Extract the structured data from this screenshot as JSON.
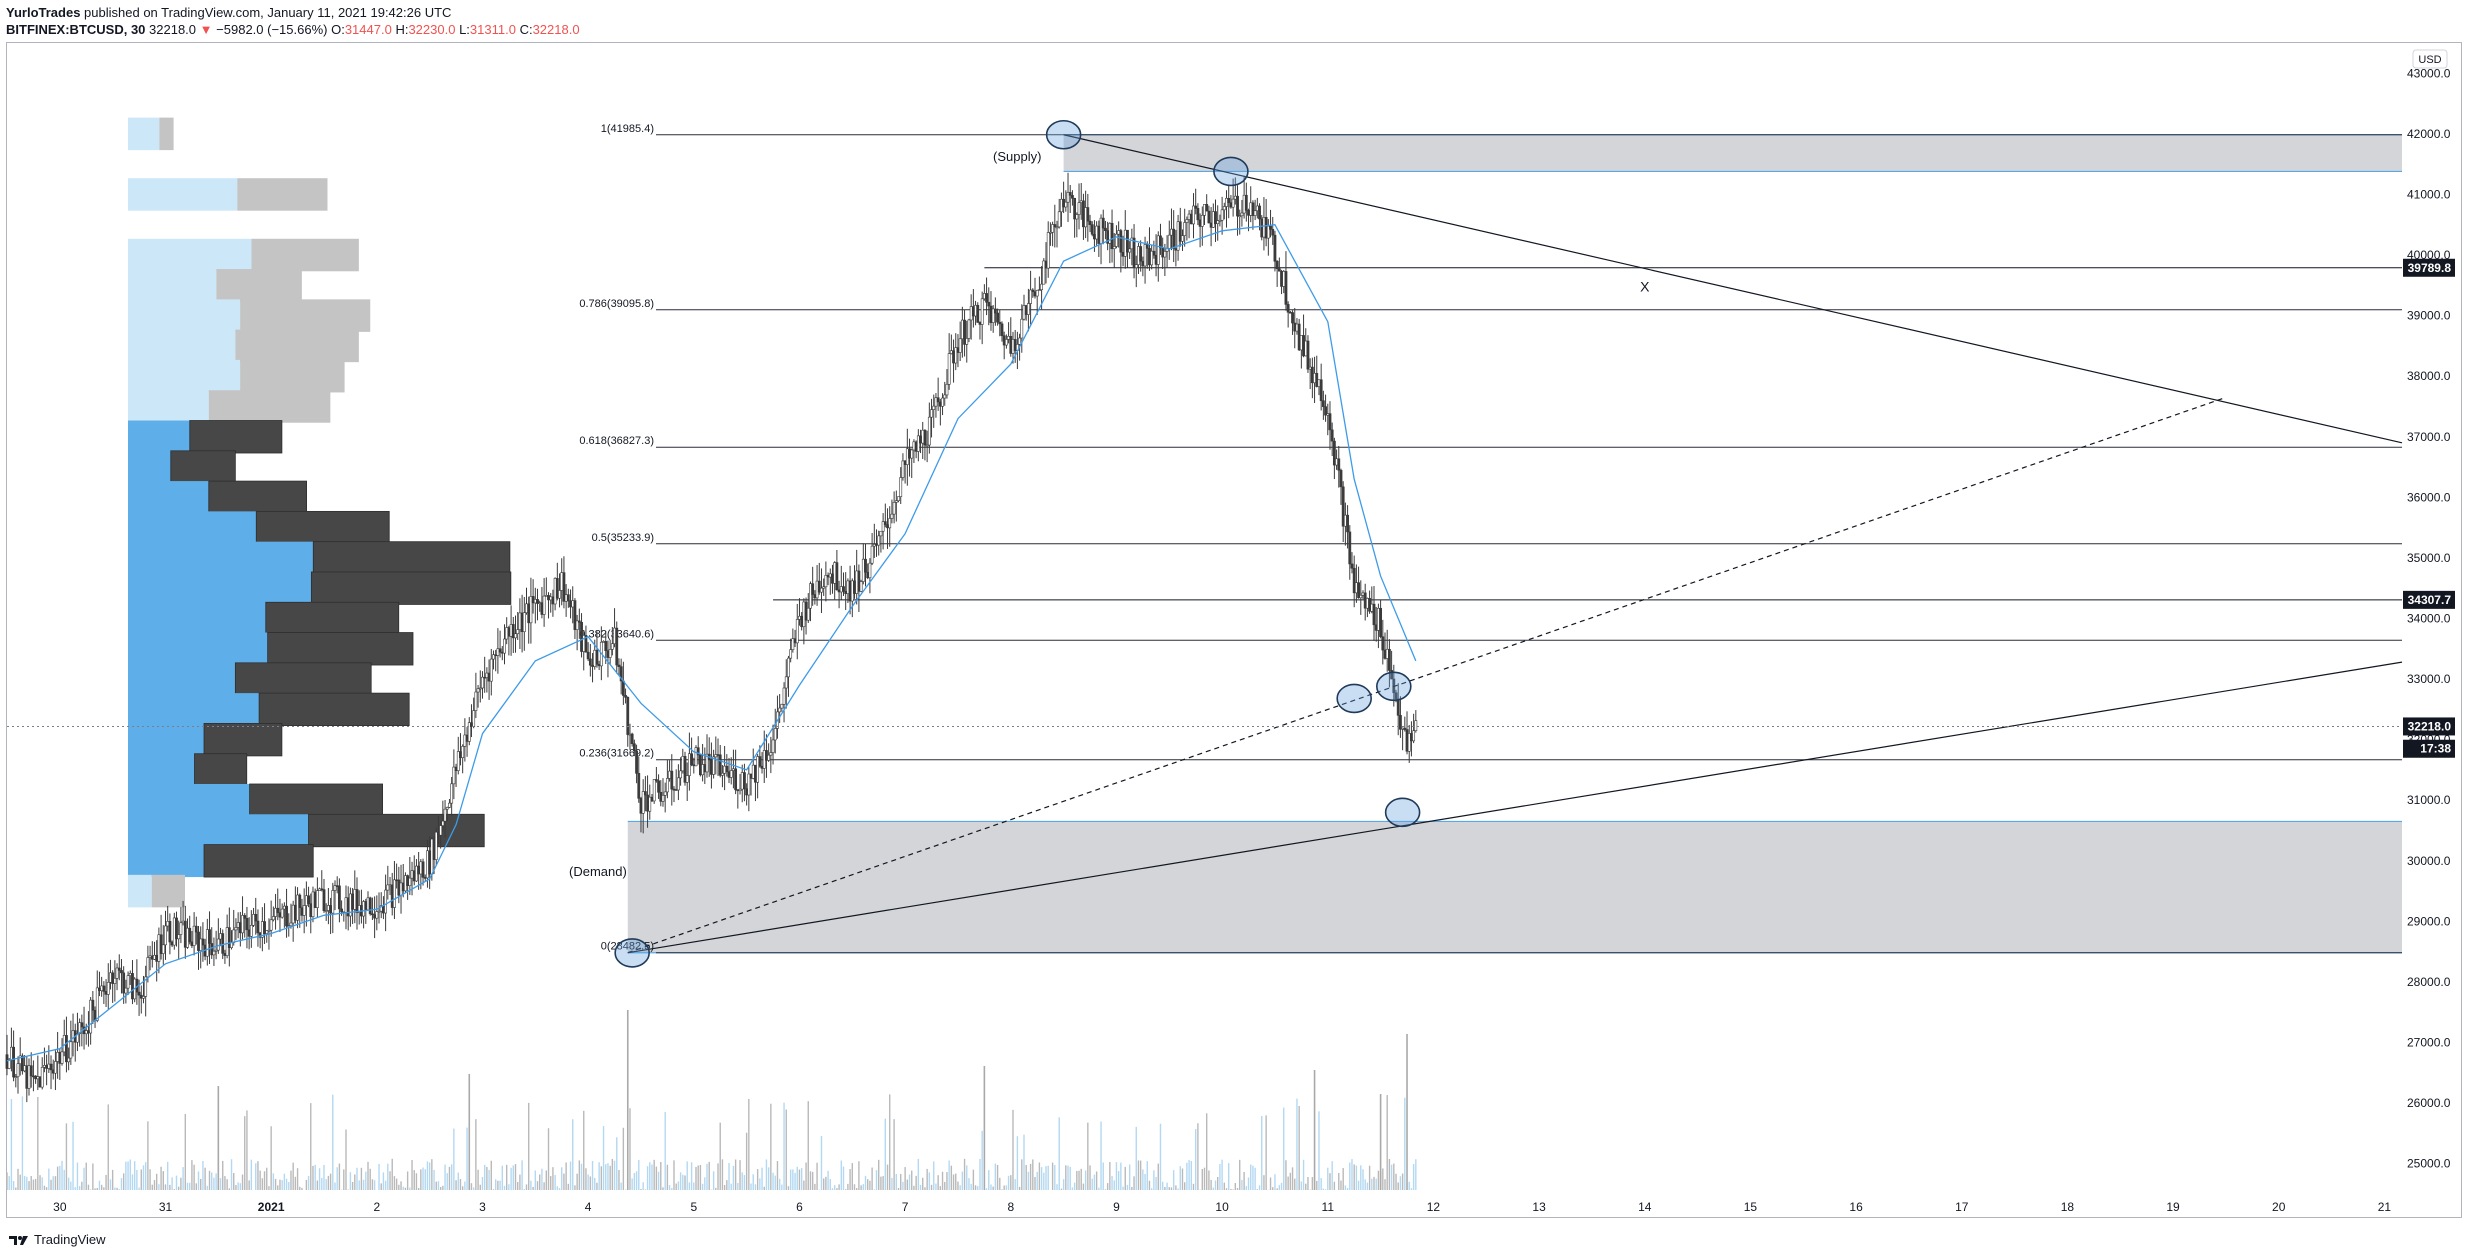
{
  "header": {
    "author": "YurloTrades",
    "published_text": "published on TradingView.com, January 11, 2021 19:42:26 UTC",
    "symbol": "BITFINEX:BTCUSD, 30",
    "last": "32218.0",
    "change": "−5982.0 (−15.66%)",
    "o_label": "O:",
    "o_value": "31447.0",
    "h_label": "H:",
    "h_value": "32230.0",
    "l_label": "L:",
    "l_value": "31311.0",
    "c_label": "C:",
    "c_value": "32218.0"
  },
  "footer": {
    "brand": "TradingView"
  },
  "chart_data": {
    "type": "candlestick",
    "currency_label": "USD",
    "ylim": [
      24500,
      43500
    ],
    "y_ticks": [
      25000,
      26000,
      27000,
      28000,
      29000,
      30000,
      31000,
      32000,
      33000,
      34000,
      35000,
      36000,
      37000,
      38000,
      39000,
      40000,
      41000,
      42000,
      43000
    ],
    "x_axis": {
      "date_range": [
        "2020-12-29 12:00",
        "2021-01-21 04:00"
      ],
      "ticks": [
        {
          "label": "30",
          "date": "2020-12-30"
        },
        {
          "label": "31",
          "date": "2020-12-31"
        },
        {
          "label": "2021",
          "date": "2021-01-01",
          "bold": true
        },
        {
          "label": "2",
          "date": "2021-01-02"
        },
        {
          "label": "3",
          "date": "2021-01-03"
        },
        {
          "label": "4",
          "date": "2021-01-04"
        },
        {
          "label": "5",
          "date": "2021-01-05"
        },
        {
          "label": "6",
          "date": "2021-01-06"
        },
        {
          "label": "7",
          "date": "2021-01-07"
        },
        {
          "label": "8",
          "date": "2021-01-08"
        },
        {
          "label": "9",
          "date": "2021-01-09"
        },
        {
          "label": "10",
          "date": "2021-01-10"
        },
        {
          "label": "11",
          "date": "2021-01-11"
        },
        {
          "label": "12",
          "date": "2021-01-12"
        },
        {
          "label": "13",
          "date": "2021-01-13"
        },
        {
          "label": "14",
          "date": "2021-01-14"
        },
        {
          "label": "15",
          "date": "2021-01-15"
        },
        {
          "label": "16",
          "date": "2021-01-16"
        },
        {
          "label": "17",
          "date": "2021-01-17"
        },
        {
          "label": "18",
          "date": "2021-01-18"
        },
        {
          "label": "19",
          "date": "2021-01-19"
        },
        {
          "label": "20",
          "date": "2021-01-20"
        },
        {
          "label": "21",
          "date": "2021-01-21"
        }
      ]
    },
    "price_path": [
      [
        "2020-12-29 12:00",
        26800
      ],
      [
        "2020-12-29 18:00",
        26300
      ],
      [
        "2020-12-30 00:00",
        26800
      ],
      [
        "2020-12-30 06:00",
        27300
      ],
      [
        "2020-12-30 12:00",
        28200
      ],
      [
        "2020-12-30 18:00",
        27800
      ],
      [
        "2020-12-31 00:00",
        28900
      ],
      [
        "2020-12-31 06:00",
        28700
      ],
      [
        "2020-12-31 12:00",
        28600
      ],
      [
        "2020-12-31 18:00",
        28900
      ],
      [
        "2021-01-01 00:00",
        29000
      ],
      [
        "2021-01-01 06:00",
        29200
      ],
      [
        "2021-01-01 12:00",
        29400
      ],
      [
        "2021-01-01 18:00",
        29300
      ],
      [
        "2021-01-02 00:00",
        29300
      ],
      [
        "2021-01-02 06:00",
        29600
      ],
      [
        "2021-01-02 12:00",
        30000
      ],
      [
        "2021-01-02 18:00",
        31500
      ],
      [
        "2021-01-03 00:00",
        33000
      ],
      [
        "2021-01-03 06:00",
        33800
      ],
      [
        "2021-01-03 12:00",
        34200
      ],
      [
        "2021-01-03 18:00",
        34600
      ],
      [
        "2021-01-04 00:00",
        33300
      ],
      [
        "2021-01-04 06:00",
        33600
      ],
      [
        "2021-01-04 12:00",
        31000
      ],
      [
        "2021-01-04 18:00",
        31200
      ],
      [
        "2021-01-05 00:00",
        31700
      ],
      [
        "2021-01-05 06:00",
        31500
      ],
      [
        "2021-01-05 12:00",
        31300
      ],
      [
        "2021-01-05 18:00",
        32000
      ],
      [
        "2021-01-06 00:00",
        34000
      ],
      [
        "2021-01-06 06:00",
        34800
      ],
      [
        "2021-01-06 12:00",
        34500
      ],
      [
        "2021-01-06 18:00",
        35200
      ],
      [
        "2021-01-07 00:00",
        36500
      ],
      [
        "2021-01-07 06:00",
        37200
      ],
      [
        "2021-01-07 12:00",
        38600
      ],
      [
        "2021-01-07 18:00",
        39200
      ],
      [
        "2021-01-08 00:00",
        38500
      ],
      [
        "2021-01-08 06:00",
        39500
      ],
      [
        "2021-01-08 12:00",
        41000
      ],
      [
        "2021-01-08 18:00",
        40500
      ],
      [
        "2021-01-09 00:00",
        40300
      ],
      [
        "2021-01-09 06:00",
        39900
      ],
      [
        "2021-01-09 12:00",
        40200
      ],
      [
        "2021-01-09 18:00",
        40600
      ],
      [
        "2021-01-10 00:00",
        40700
      ],
      [
        "2021-01-10 06:00",
        40900
      ],
      [
        "2021-01-10 12:00",
        40100
      ],
      [
        "2021-01-10 18:00",
        38500
      ],
      [
        "2021-01-11 00:00",
        37500
      ],
      [
        "2021-01-11 06:00",
        34500
      ],
      [
        "2021-01-11 12:00",
        33900
      ],
      [
        "2021-01-11 18:00",
        31800
      ],
      [
        "2021-01-11 20:00",
        32218
      ]
    ],
    "moving_average": [
      [
        "2020-12-29 12:00",
        26700
      ],
      [
        "2020-12-30 00:00",
        26900
      ],
      [
        "2020-12-30 12:00",
        27600
      ],
      [
        "2020-12-31 00:00",
        28300
      ],
      [
        "2020-12-31 12:00",
        28600
      ],
      [
        "2021-01-01 00:00",
        28800
      ],
      [
        "2021-01-01 12:00",
        29100
      ],
      [
        "2021-01-02 00:00",
        29200
      ],
      [
        "2021-01-02 12:00",
        29700
      ],
      [
        "2021-01-02 18:00",
        30600
      ],
      [
        "2021-01-03 00:00",
        32100
      ],
      [
        "2021-01-03 12:00",
        33300
      ],
      [
        "2021-01-04 00:00",
        33700
      ],
      [
        "2021-01-04 12:00",
        32600
      ],
      [
        "2021-01-05 00:00",
        31800
      ],
      [
        "2021-01-05 12:00",
        31500
      ],
      [
        "2021-01-06 00:00",
        32900
      ],
      [
        "2021-01-06 12:00",
        34200
      ],
      [
        "2021-01-07 00:00",
        35400
      ],
      [
        "2021-01-07 12:00",
        37300
      ],
      [
        "2021-01-08 00:00",
        38200
      ],
      [
        "2021-01-08 12:00",
        39900
      ],
      [
        "2021-01-09 00:00",
        40300
      ],
      [
        "2021-01-09 12:00",
        40100
      ],
      [
        "2021-01-10 00:00",
        40400
      ],
      [
        "2021-01-10 12:00",
        40500
      ],
      [
        "2021-01-11 00:00",
        38900
      ],
      [
        "2021-01-11 06:00",
        36300
      ],
      [
        "2021-01-11 12:00",
        34700
      ],
      [
        "2021-01-11 20:00",
        33300
      ]
    ],
    "volume_spikes": [
      [
        "2021-01-02 21:00",
        0.58
      ],
      [
        "2020-12-31 12:00",
        0.52
      ],
      [
        "2021-01-04 09:00",
        0.9
      ],
      [
        "2021-01-07 18:00",
        0.62
      ],
      [
        "2021-01-10 21:00",
        0.6
      ],
      [
        "2021-01-11 18:00",
        0.78
      ],
      [
        "2021-01-11 12:00",
        0.48
      ]
    ],
    "fibonacci": [
      {
        "label": "1(41985.4)",
        "price": 41985.4
      },
      {
        "label": "0.786(39095.8)",
        "price": 39095.8
      },
      {
        "label": "0.618(36827.3)",
        "price": 36827.3
      },
      {
        "label": "0.5(35233.9)",
        "price": 35233.9
      },
      {
        "label": "0.382(33640.6)",
        "price": 33640.6
      },
      {
        "label": "0.236(31669.2)",
        "price": 31669.2
      },
      {
        "label": "0(28482.5)",
        "price": 28482.5
      }
    ],
    "horizontal_levels": [
      {
        "label": "39789.8",
        "price": 39789.8,
        "start": "2021-01-07 18:00"
      },
      {
        "label": "34307.7",
        "price": 34307.7,
        "start": "2021-01-05 18:00"
      }
    ],
    "zones": [
      {
        "label": "(Supply)",
        "top": 41985.4,
        "bottom": 41380,
        "start": "2021-01-08 12:00"
      },
      {
        "label": "(Demand)",
        "top": 30650,
        "bottom": 28482.5,
        "start": "2021-01-04 09:00"
      }
    ],
    "trendlines": [
      {
        "style": "solid",
        "from": [
          "2021-01-08 12:00",
          41985.4
        ],
        "to": [
          "2021-01-21 04:00",
          36900
        ]
      },
      {
        "style": "solid",
        "from": [
          "2021-01-04 09:00",
          28482.5
        ],
        "to": [
          "2021-01-21 04:00",
          33280
        ]
      },
      {
        "style": "dashed",
        "from": [
          "2021-01-04 09:00",
          28482.5
        ],
        "to": [
          "2021-01-19 12:00",
          37650
        ]
      }
    ],
    "circles": [
      [
        "2021-01-08 12:00",
        41985.4
      ],
      [
        "2021-01-10 02:00",
        41380
      ],
      [
        "2021-01-11 06:00",
        32680
      ],
      [
        "2021-01-11 15:00",
        32880
      ],
      [
        "2021-01-11 17:00",
        30800
      ],
      [
        "2021-01-04 10:00",
        28480
      ]
    ],
    "annotation_x": {
      "label": "X",
      "date": "2021-01-14 00:00",
      "price": 39400
    },
    "price_labels": [
      {
        "label": "39789.8",
        "price": 39789.8,
        "style": "dark"
      },
      {
        "label": "34307.7",
        "price": 34307.7,
        "style": "dark"
      },
      {
        "label": "32218.0",
        "price": 32218.0,
        "style": "dark"
      },
      {
        "label": "17:38",
        "price": 31850,
        "style": "dark"
      }
    ],
    "volume_profile": [
      {
        "price": 42000,
        "up": 0.33,
        "down": 0.15,
        "light": true
      },
      {
        "price": 41000,
        "up": 1.15,
        "down": 0.95,
        "light": true
      },
      {
        "price": 40000,
        "up": 1.3,
        "down": 1.13,
        "light": true
      },
      {
        "price": 39500,
        "up": 0.93,
        "down": 0.9,
        "light": true
      },
      {
        "price": 39000,
        "up": 1.18,
        "down": 1.37,
        "light": true
      },
      {
        "price": 38500,
        "up": 1.13,
        "down": 1.3,
        "light": true
      },
      {
        "price": 38000,
        "up": 1.18,
        "down": 1.1,
        "light": true
      },
      {
        "price": 37500,
        "up": 0.85,
        "down": 1.28,
        "light": true
      },
      {
        "price": 37000,
        "up": 0.65,
        "down": 0.97,
        "light": false
      },
      {
        "price": 36500,
        "up": 0.45,
        "down": 0.68,
        "light": false
      },
      {
        "price": 36000,
        "up": 0.85,
        "down": 1.03,
        "light": false
      },
      {
        "price": 35500,
        "up": 1.35,
        "down": 1.4,
        "light": false
      },
      {
        "price": 35000,
        "up": 1.95,
        "down": 2.07,
        "light": false
      },
      {
        "price": 34500,
        "up": 1.93,
        "down": 2.1,
        "light": false
      },
      {
        "price": 34000,
        "up": 1.45,
        "down": 1.4,
        "light": false
      },
      {
        "price": 33500,
        "up": 1.47,
        "down": 1.53,
        "light": false
      },
      {
        "price": 33000,
        "up": 1.13,
        "down": 1.43,
        "light": false
      },
      {
        "price": 32500,
        "up": 1.38,
        "down": 1.58,
        "light": false
      },
      {
        "price": 32000,
        "up": 0.8,
        "down": 0.82,
        "light": false
      },
      {
        "price": 31500,
        "up": 0.7,
        "down": 0.55,
        "light": false
      },
      {
        "price": 31000,
        "up": 1.28,
        "down": 1.4,
        "light": false
      },
      {
        "price": 30500,
        "up": 1.9,
        "down": 1.85,
        "light": false
      },
      {
        "price": 30000,
        "up": 0.8,
        "down": 1.15,
        "light": false
      },
      {
        "price": 29500,
        "up": 0.25,
        "down": 0.35,
        "light": true
      }
    ]
  }
}
